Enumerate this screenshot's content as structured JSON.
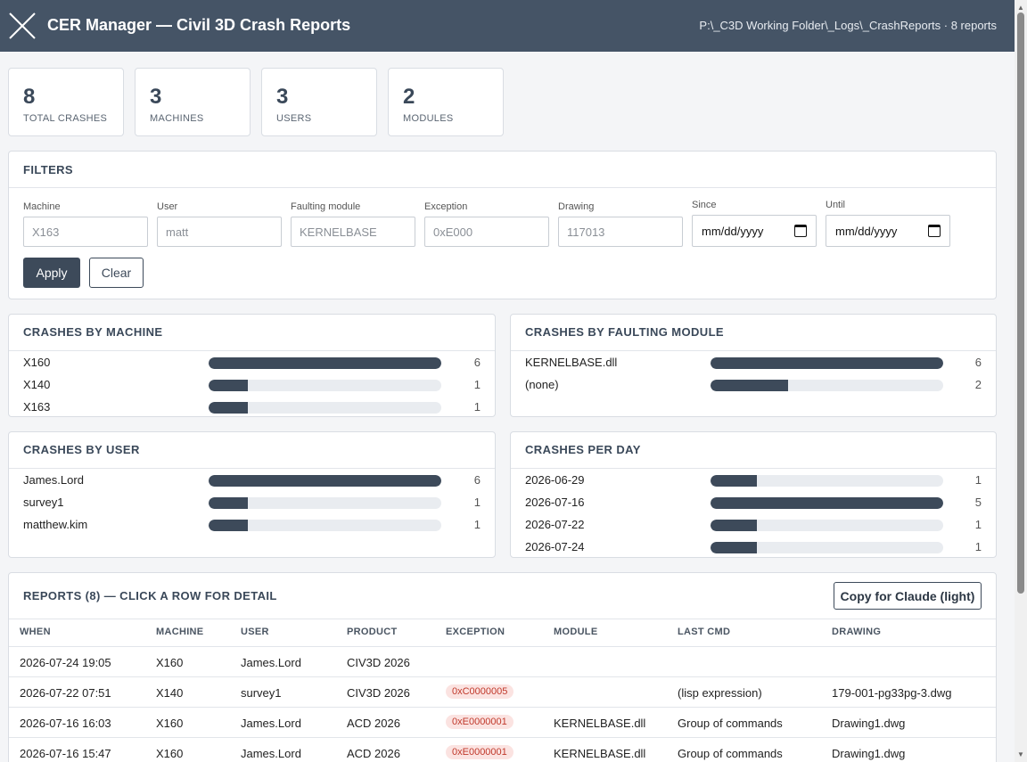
{
  "header": {
    "title": "CER Manager — Civil 3D Crash Reports",
    "path_info": "P:\\_C3D Working Folder\\_Logs\\_CrashReports · 8 reports"
  },
  "stats": [
    {
      "value": "8",
      "label": "TOTAL CRASHES"
    },
    {
      "value": "3",
      "label": "MACHINES"
    },
    {
      "value": "3",
      "label": "USERS"
    },
    {
      "value": "2",
      "label": "MODULES"
    }
  ],
  "filters": {
    "title": "FILTERS",
    "machine": {
      "label": "Machine",
      "placeholder": "X163"
    },
    "user": {
      "label": "User",
      "placeholder": "matt"
    },
    "module": {
      "label": "Faulting module",
      "placeholder": "KERNELBASE"
    },
    "exception": {
      "label": "Exception",
      "placeholder": "0xE000"
    },
    "drawing": {
      "label": "Drawing",
      "placeholder": "117013"
    },
    "since": {
      "label": "Since",
      "value": "mm/dd/yyyy"
    },
    "until": {
      "label": "Until",
      "value": "mm/dd/yyyy"
    },
    "apply_label": "Apply",
    "clear_label": "Clear"
  },
  "by_machine": {
    "title": "CRASHES BY MACHINE",
    "max": 6,
    "rows": [
      {
        "label": "X160",
        "count": 6
      },
      {
        "label": "X140",
        "count": 1
      },
      {
        "label": "X163",
        "count": 1
      }
    ]
  },
  "by_module": {
    "title": "CRASHES BY FAULTING MODULE",
    "max": 6,
    "rows": [
      {
        "label": "KERNELBASE.dll",
        "count": 6
      },
      {
        "label": "(none)",
        "count": 2
      }
    ]
  },
  "by_user": {
    "title": "CRASHES BY USER",
    "max": 6,
    "rows": [
      {
        "label": "James.Lord",
        "count": 6
      },
      {
        "label": "survey1",
        "count": 1
      },
      {
        "label": "matthew.kim",
        "count": 1
      }
    ]
  },
  "per_day": {
    "title": "CRASHES PER DAY",
    "max": 5,
    "rows": [
      {
        "label": "2026-06-29",
        "count": 1
      },
      {
        "label": "2026-07-16",
        "count": 5
      },
      {
        "label": "2026-07-22",
        "count": 1
      },
      {
        "label": "2026-07-24",
        "count": 1
      }
    ]
  },
  "reports": {
    "title": "REPORTS (8) — CLICK A ROW FOR DETAIL",
    "copy_label": "Copy for Claude (light)",
    "columns": [
      "WHEN",
      "MACHINE",
      "USER",
      "PRODUCT",
      "EXCEPTION",
      "MODULE",
      "LAST CMD",
      "DRAWING"
    ],
    "rows": [
      {
        "when": "2026-07-24 19:05",
        "machine": "X160",
        "user": "James.Lord",
        "product": "CIV3D 2026",
        "exception": "",
        "module": "",
        "last_cmd": "",
        "drawing": ""
      },
      {
        "when": "2026-07-22 07:51",
        "machine": "X140",
        "user": "survey1",
        "product": "CIV3D 2026",
        "exception": "0xC0000005",
        "module": "",
        "last_cmd": "(lisp expression)",
        "drawing": "179-001-pg33pg-3.dwg"
      },
      {
        "when": "2026-07-16 16:03",
        "machine": "X160",
        "user": "James.Lord",
        "product": "ACD 2026",
        "exception": "0xE0000001",
        "module": "KERNELBASE.dll",
        "last_cmd": "Group of commands",
        "drawing": "Drawing1.dwg"
      },
      {
        "when": "2026-07-16 15:47",
        "machine": "X160",
        "user": "James.Lord",
        "product": "ACD 2026",
        "exception": "0xE0000001",
        "module": "KERNELBASE.dll",
        "last_cmd": "Group of commands",
        "drawing": "Drawing1.dwg"
      }
    ]
  },
  "icons": {
    "logo": "x-logo-icon",
    "calendar": "calendar-icon"
  }
}
